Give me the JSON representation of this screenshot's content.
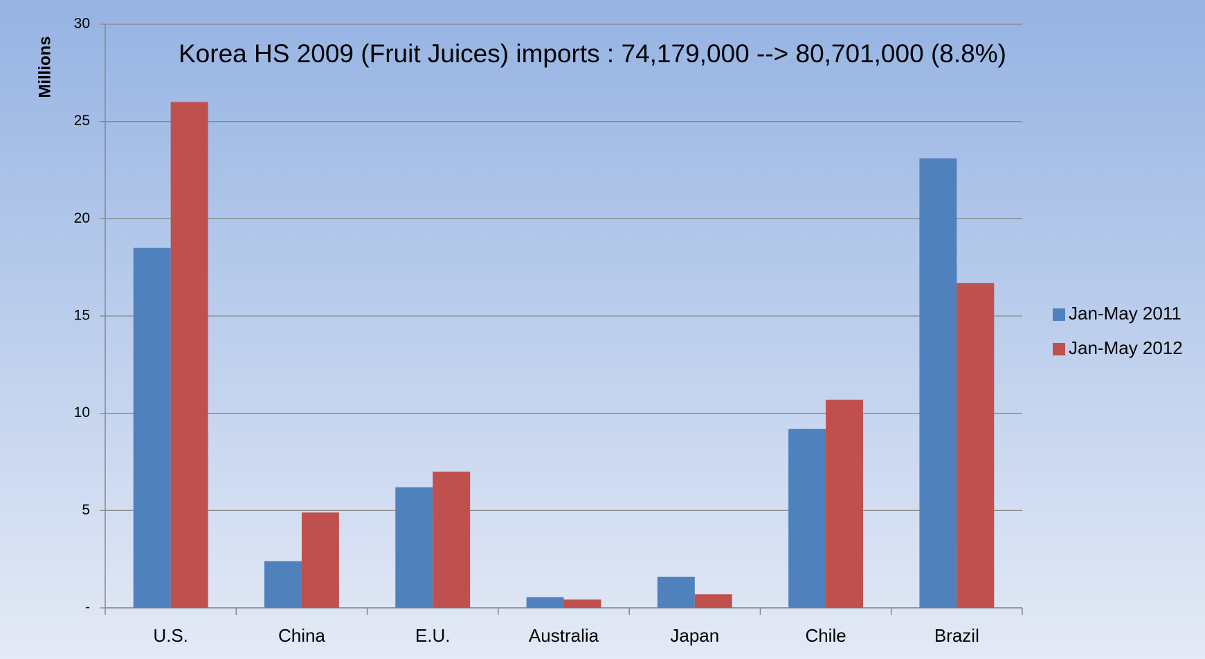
{
  "chart_data": {
    "type": "bar",
    "title": "Korea HS 2009 (Fruit Juices) imports : 74,179,000 --> 80,701,000 (8.8%)",
    "y_label": "Millions",
    "categories": [
      "U.S.",
      "China",
      "E.U.",
      "Australia",
      "Japan",
      "Chile",
      "Brazil"
    ],
    "series": [
      {
        "name": "Jan-May 2011",
        "color": "#4f81bd",
        "values": [
          18.5,
          2.4,
          6.2,
          0.55,
          1.6,
          9.2,
          23.1
        ]
      },
      {
        "name": "Jan-May 2012",
        "color": "#c0504d",
        "values": [
          26.0,
          4.9,
          7.0,
          0.43,
          0.7,
          10.7,
          16.7
        ]
      }
    ],
    "ylim": [
      0,
      30
    ],
    "yticks": [
      {
        "value": 0,
        "label": "-"
      },
      5,
      10,
      15,
      20,
      25,
      30
    ],
    "grid": true,
    "legend": "right"
  }
}
